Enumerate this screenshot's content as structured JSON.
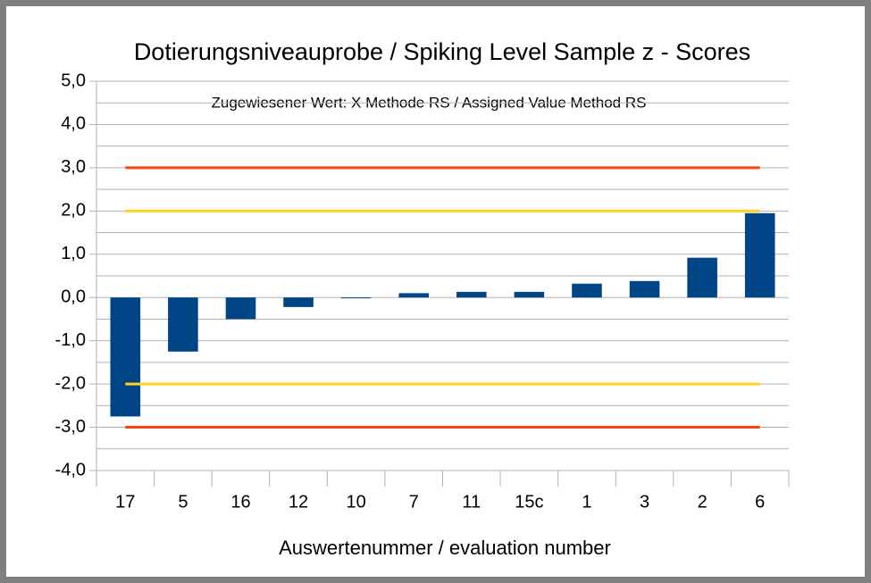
{
  "chart_data": {
    "type": "bar",
    "title": "Dotierungsniveauprobe / Spiking Level Sample  z - Scores",
    "annotation": "Zugewiesener Wert: X Methode RS / Assigned Value Method RS",
    "x_label": "Auswertenummer / evaluation number",
    "categories": [
      "17",
      "5",
      "16",
      "12",
      "10",
      "7",
      "11",
      "15c",
      "1",
      "3",
      "2",
      "6"
    ],
    "values": [
      -2.75,
      -1.25,
      -0.5,
      -0.22,
      -0.02,
      0.1,
      0.13,
      0.13,
      0.32,
      0.38,
      0.92,
      1.95
    ],
    "color": "#004586",
    "ylim": [
      -4,
      5
    ],
    "yticks": [
      {
        "value": -4,
        "label": "-4,0"
      },
      {
        "value": -3,
        "label": "-3,0"
      },
      {
        "value": -2,
        "label": "-2,0"
      },
      {
        "value": -1,
        "label": "-1,0"
      },
      {
        "value": 0,
        "label": "0,0"
      },
      {
        "value": 1,
        "label": "1,0"
      },
      {
        "value": 2,
        "label": "2,0"
      },
      {
        "value": 3,
        "label": "3,0"
      },
      {
        "value": 4,
        "label": "4,0"
      },
      {
        "value": 5,
        "label": "5,0"
      }
    ],
    "minor_yticks": [
      -3.5,
      -2.5,
      -1.5,
      -0.5,
      0.5,
      1.5,
      2.5,
      3.5,
      4.5
    ],
    "grid": true,
    "reference_lines": [
      {
        "value": 3,
        "color": "#ff420e"
      },
      {
        "value": 2,
        "color": "#ffd320"
      },
      {
        "value": -2,
        "color": "#ffd320"
      },
      {
        "value": -3,
        "color": "#ff420e"
      }
    ]
  }
}
